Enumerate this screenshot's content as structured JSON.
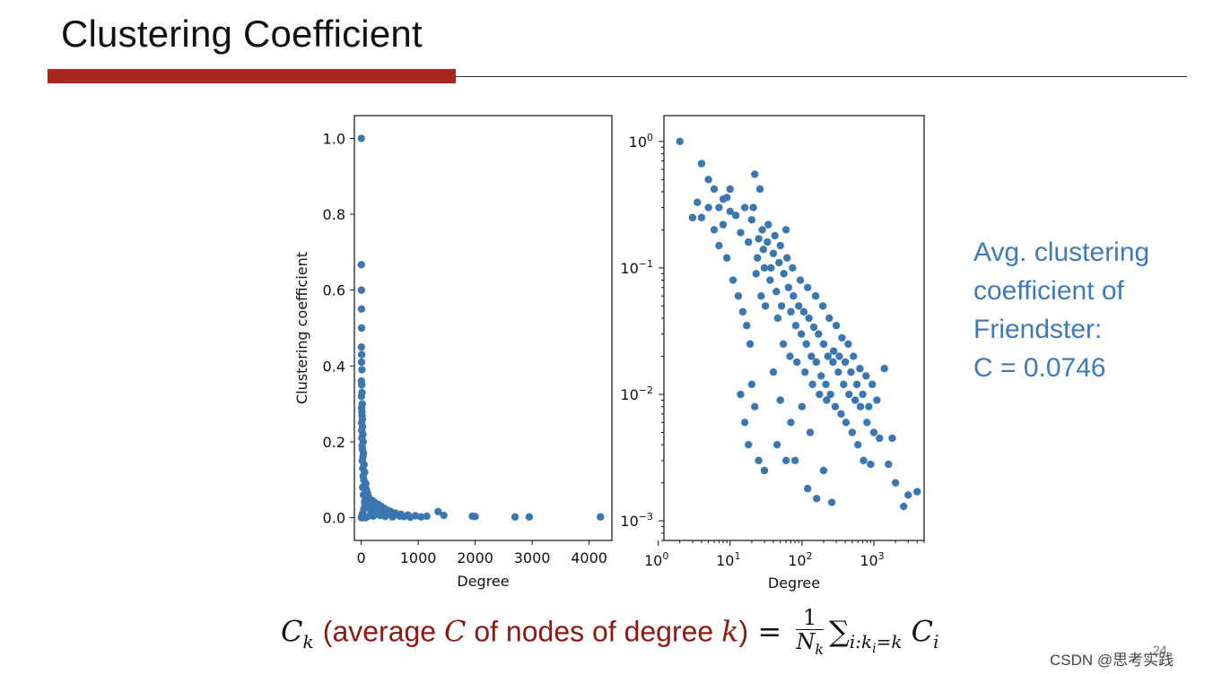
{
  "slide": {
    "title": "Clustering Coefficient",
    "note_lines": [
      "Avg. clustering",
      "coefficient of",
      "Friendster:",
      "C = 0.0746"
    ],
    "formula": {
      "lhs_symbol": "C",
      "lhs_subscript": "k",
      "paren_open": "(average ",
      "paren_symbol": "C",
      "paren_middle": " of nodes of degree ",
      "paren_var": "k",
      "paren_close": ")",
      "equals": " = ",
      "fraction_numerator": "1",
      "fraction_den_symbol": "N",
      "fraction_den_subscript": "k",
      "sum_symbol": "∑",
      "sum_subscript": "i:k",
      "sum_subscript_inner": "i",
      "sum_subscript_tail": "=k",
      "term_symbol": "C",
      "term_subscript": "i"
    },
    "page_number": "24",
    "watermark": "CSDN @思考实践"
  },
  "colors": {
    "accent_red": "#a8261c",
    "marker_blue": "#3a77b0",
    "note_blue": "#3e7bb6",
    "formula_red": "#8c1a12"
  },
  "chart_data": [
    {
      "type": "scatter",
      "xlabel": "Degree",
      "ylabel": "Clustering coefficient",
      "xlim": [
        -120,
        4400
      ],
      "ylim": [
        -0.06,
        1.06
      ],
      "xticks": [
        0,
        1000,
        2000,
        3000,
        4000
      ],
      "yticks": [
        0.0,
        0.2,
        0.4,
        0.6,
        0.8,
        1.0
      ],
      "x_tick_labels": [
        "0",
        "1000",
        "2000",
        "3000",
        "4000"
      ],
      "y_tick_labels": [
        "0.0",
        "0.2",
        "0.4",
        "0.6",
        "0.8",
        "1.0"
      ],
      "grid": false,
      "points": [
        [
          2,
          1.0
        ],
        [
          2,
          0.667
        ],
        [
          3,
          0.6
        ],
        [
          5,
          0.55
        ],
        [
          6,
          0.5
        ],
        [
          4,
          0.45
        ],
        [
          8,
          0.43
        ],
        [
          6,
          0.41
        ],
        [
          12,
          0.39
        ],
        [
          3,
          0.36
        ],
        [
          10,
          0.35
        ],
        [
          14,
          0.33
        ],
        [
          5,
          0.32
        ],
        [
          18,
          0.3
        ],
        [
          8,
          0.29
        ],
        [
          11,
          0.28
        ],
        [
          15,
          0.27
        ],
        [
          20,
          0.26
        ],
        [
          6,
          0.25
        ],
        [
          24,
          0.24
        ],
        [
          9,
          0.23
        ],
        [
          28,
          0.22
        ],
        [
          12,
          0.21
        ],
        [
          35,
          0.2
        ],
        [
          16,
          0.19
        ],
        [
          22,
          0.18
        ],
        [
          40,
          0.17
        ],
        [
          30,
          0.16
        ],
        [
          18,
          0.15
        ],
        [
          50,
          0.14
        ],
        [
          26,
          0.13
        ],
        [
          60,
          0.12
        ],
        [
          34,
          0.11
        ],
        [
          45,
          0.1
        ],
        [
          80,
          0.09
        ],
        [
          55,
          0.085
        ],
        [
          25,
          0.08
        ],
        [
          90,
          0.075
        ],
        [
          70,
          0.07
        ],
        [
          110,
          0.065
        ],
        [
          40,
          0.06
        ],
        [
          130,
          0.055
        ],
        [
          85,
          0.05
        ],
        [
          160,
          0.048
        ],
        [
          200,
          0.045
        ],
        [
          60,
          0.042
        ],
        [
          240,
          0.04
        ],
        [
          120,
          0.038
        ],
        [
          300,
          0.035
        ],
        [
          150,
          0.032
        ],
        [
          350,
          0.03
        ],
        [
          180,
          0.028
        ],
        [
          400,
          0.025
        ],
        [
          220,
          0.022
        ],
        [
          460,
          0.02
        ],
        [
          260,
          0.018
        ],
        [
          520,
          0.016
        ],
        [
          320,
          0.014
        ],
        [
          600,
          0.012
        ],
        [
          380,
          0.01
        ],
        [
          700,
          0.009
        ],
        [
          450,
          0.008
        ],
        [
          820,
          0.007
        ],
        [
          560,
          0.006
        ],
        [
          950,
          0.005
        ],
        [
          680,
          0.004
        ],
        [
          1150,
          0.004
        ],
        [
          1350,
          0.016
        ],
        [
          1450,
          0.006
        ],
        [
          1950,
          0.004
        ],
        [
          2000,
          0.003
        ],
        [
          2700,
          0.002
        ],
        [
          2950,
          0.002
        ],
        [
          4200,
          0.002
        ],
        [
          10,
          0.005
        ],
        [
          20,
          0.003
        ],
        [
          30,
          0.002
        ],
        [
          15,
          0.0
        ],
        [
          40,
          0.001
        ],
        [
          70,
          0.0
        ],
        [
          100,
          0.002
        ],
        [
          5,
          0.0
        ],
        [
          25,
          0.011
        ],
        [
          45,
          0.023
        ],
        [
          65,
          0.034
        ],
        [
          95,
          0.046
        ],
        [
          140,
          0.028
        ],
        [
          170,
          0.017
        ],
        [
          190,
          0.009
        ],
        [
          210,
          0.004
        ],
        [
          280,
          0.012
        ],
        [
          330,
          0.006
        ],
        [
          420,
          0.003
        ],
        [
          490,
          0.011
        ],
        [
          550,
          0.002
        ],
        [
          640,
          0.008
        ],
        [
          750,
          0.003
        ],
        [
          860,
          0.001
        ],
        [
          1050,
          0.002
        ]
      ]
    },
    {
      "type": "scatter",
      "xlabel": "Degree",
      "x_scale": "log",
      "y_scale": "log",
      "xlim": [
        1.2,
        5000
      ],
      "ylim": [
        0.0007,
        1.6
      ],
      "x_tick_labels": [
        "10^0",
        "10^1",
        "10^2",
        "10^3"
      ],
      "y_tick_labels": [
        "10^0",
        "10^-1",
        "10^-2",
        "10^-3"
      ],
      "grid": false,
      "points": [
        [
          2,
          1.0
        ],
        [
          4,
          0.667
        ],
        [
          3.5,
          0.33
        ],
        [
          5,
          0.5
        ],
        [
          3,
          0.25
        ],
        [
          6,
          0.42
        ],
        [
          7,
          0.3
        ],
        [
          8,
          0.22
        ],
        [
          9,
          0.36
        ],
        [
          10,
          0.42
        ],
        [
          12,
          0.26
        ],
        [
          14,
          0.19
        ],
        [
          16,
          0.3
        ],
        [
          18,
          0.16
        ],
        [
          20,
          0.24
        ],
        [
          22,
          0.55
        ],
        [
          24,
          0.12
        ],
        [
          26,
          0.42
        ],
        [
          28,
          0.2
        ],
        [
          30,
          0.1
        ],
        [
          33,
          0.16
        ],
        [
          36,
          0.08
        ],
        [
          40,
          0.13
        ],
        [
          44,
          0.065
        ],
        [
          48,
          0.11
        ],
        [
          52,
          0.05
        ],
        [
          56,
          0.09
        ],
        [
          60,
          0.2
        ],
        [
          65,
          0.07
        ],
        [
          70,
          0.045
        ],
        [
          76,
          0.06
        ],
        [
          82,
          0.035
        ],
        [
          90,
          0.05
        ],
        [
          98,
          0.03
        ],
        [
          106,
          0.045
        ],
        [
          115,
          0.025
        ],
        [
          125,
          0.04
        ],
        [
          135,
          0.02
        ],
        [
          146,
          0.034
        ],
        [
          158,
          0.018
        ],
        [
          170,
          0.03
        ],
        [
          185,
          0.014
        ],
        [
          200,
          0.025
        ],
        [
          215,
          0.012
        ],
        [
          230,
          0.02
        ],
        [
          250,
          0.01
        ],
        [
          270,
          0.018
        ],
        [
          290,
          0.008
        ],
        [
          320,
          0.015
        ],
        [
          350,
          0.007
        ],
        [
          380,
          0.012
        ],
        [
          410,
          0.006
        ],
        [
          450,
          0.01
        ],
        [
          500,
          0.005
        ],
        [
          550,
          0.009
        ],
        [
          600,
          0.004
        ],
        [
          650,
          0.008
        ],
        [
          720,
          0.003
        ],
        [
          800,
          0.006
        ],
        [
          900,
          0.0028
        ],
        [
          1000,
          0.005
        ],
        [
          1200,
          0.0045
        ],
        [
          1400,
          0.016
        ],
        [
          1600,
          0.0028
        ],
        [
          1800,
          0.0045
        ],
        [
          2000,
          0.002
        ],
        [
          2600,
          0.0013
        ],
        [
          3000,
          0.0016
        ],
        [
          4000,
          0.0017
        ],
        [
          25,
          0.003
        ],
        [
          30,
          0.0025
        ],
        [
          45,
          0.004
        ],
        [
          60,
          0.003
        ],
        [
          80,
          0.003
        ],
        [
          120,
          0.0018
        ],
        [
          160,
          0.0015
        ],
        [
          200,
          0.0025
        ],
        [
          260,
          0.0014
        ],
        [
          14,
          0.01
        ],
        [
          16,
          0.006
        ],
        [
          18,
          0.004
        ],
        [
          20,
          0.012
        ],
        [
          22,
          0.008
        ],
        [
          40,
          0.015
        ],
        [
          50,
          0.009
        ],
        [
          70,
          0.006
        ],
        [
          100,
          0.008
        ],
        [
          130,
          0.005
        ],
        [
          4,
          0.25
        ],
        [
          5,
          0.3
        ],
        [
          6,
          0.2
        ],
        [
          7,
          0.15
        ],
        [
          8,
          0.35
        ],
        [
          9,
          0.12
        ],
        [
          10,
          0.28
        ],
        [
          11,
          0.08
        ],
        [
          13,
          0.06
        ],
        [
          15,
          0.045
        ],
        [
          17,
          0.035
        ],
        [
          19,
          0.025
        ],
        [
          21,
          0.3
        ],
        [
          23,
          0.09
        ],
        [
          25,
          0.17
        ],
        [
          27,
          0.06
        ],
        [
          29,
          0.14
        ],
        [
          31,
          0.05
        ],
        [
          34,
          0.22
        ],
        [
          37,
          0.1
        ],
        [
          42,
          0.18
        ],
        [
          46,
          0.04
        ],
        [
          50,
          0.15
        ],
        [
          55,
          0.025
        ],
        [
          62,
          0.12
        ],
        [
          68,
          0.02
        ],
        [
          74,
          0.1
        ],
        [
          85,
          0.018
        ],
        [
          95,
          0.08
        ],
        [
          110,
          0.015
        ],
        [
          120,
          0.07
        ],
        [
          140,
          0.012
        ],
        [
          155,
          0.06
        ],
        [
          175,
          0.01
        ],
        [
          195,
          0.05
        ],
        [
          220,
          0.009
        ],
        [
          240,
          0.04
        ],
        [
          275,
          0.022
        ],
        [
          300,
          0.035
        ],
        [
          330,
          0.02
        ],
        [
          360,
          0.028
        ],
        [
          400,
          0.018
        ],
        [
          440,
          0.025
        ],
        [
          480,
          0.015
        ],
        [
          520,
          0.02
        ],
        [
          580,
          0.012
        ],
        [
          640,
          0.016
        ],
        [
          700,
          0.01
        ],
        [
          780,
          0.014
        ],
        [
          850,
          0.008
        ],
        [
          950,
          0.012
        ],
        [
          1100,
          0.009
        ]
      ]
    }
  ]
}
